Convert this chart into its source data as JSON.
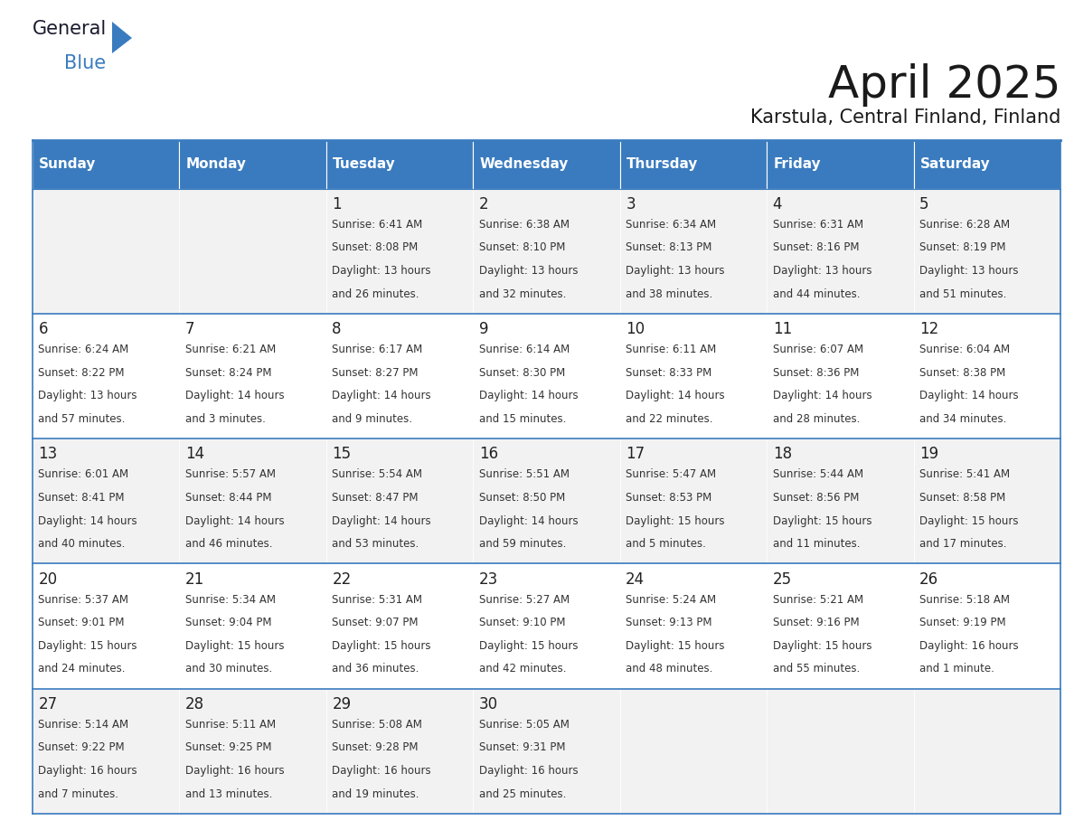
{
  "title": "April 2025",
  "subtitle": "Karstula, Central Finland, Finland",
  "header_bg": "#3a7bbf",
  "header_text_color": "#ffffff",
  "cell_bg_odd": "#f2f2f2",
  "cell_bg_even": "#ffffff",
  "text_color": "#333333",
  "day_num_color": "#222222",
  "border_color": "#3a7bbf",
  "days_of_week": [
    "Sunday",
    "Monday",
    "Tuesday",
    "Wednesday",
    "Thursday",
    "Friday",
    "Saturday"
  ],
  "weeks": [
    [
      {
        "day": "",
        "info": ""
      },
      {
        "day": "",
        "info": ""
      },
      {
        "day": "1",
        "info": "Sunrise: 6:41 AM\nSunset: 8:08 PM\nDaylight: 13 hours\nand 26 minutes."
      },
      {
        "day": "2",
        "info": "Sunrise: 6:38 AM\nSunset: 8:10 PM\nDaylight: 13 hours\nand 32 minutes."
      },
      {
        "day": "3",
        "info": "Sunrise: 6:34 AM\nSunset: 8:13 PM\nDaylight: 13 hours\nand 38 minutes."
      },
      {
        "day": "4",
        "info": "Sunrise: 6:31 AM\nSunset: 8:16 PM\nDaylight: 13 hours\nand 44 minutes."
      },
      {
        "day": "5",
        "info": "Sunrise: 6:28 AM\nSunset: 8:19 PM\nDaylight: 13 hours\nand 51 minutes."
      }
    ],
    [
      {
        "day": "6",
        "info": "Sunrise: 6:24 AM\nSunset: 8:22 PM\nDaylight: 13 hours\nand 57 minutes."
      },
      {
        "day": "7",
        "info": "Sunrise: 6:21 AM\nSunset: 8:24 PM\nDaylight: 14 hours\nand 3 minutes."
      },
      {
        "day": "8",
        "info": "Sunrise: 6:17 AM\nSunset: 8:27 PM\nDaylight: 14 hours\nand 9 minutes."
      },
      {
        "day": "9",
        "info": "Sunrise: 6:14 AM\nSunset: 8:30 PM\nDaylight: 14 hours\nand 15 minutes."
      },
      {
        "day": "10",
        "info": "Sunrise: 6:11 AM\nSunset: 8:33 PM\nDaylight: 14 hours\nand 22 minutes."
      },
      {
        "day": "11",
        "info": "Sunrise: 6:07 AM\nSunset: 8:36 PM\nDaylight: 14 hours\nand 28 minutes."
      },
      {
        "day": "12",
        "info": "Sunrise: 6:04 AM\nSunset: 8:38 PM\nDaylight: 14 hours\nand 34 minutes."
      }
    ],
    [
      {
        "day": "13",
        "info": "Sunrise: 6:01 AM\nSunset: 8:41 PM\nDaylight: 14 hours\nand 40 minutes."
      },
      {
        "day": "14",
        "info": "Sunrise: 5:57 AM\nSunset: 8:44 PM\nDaylight: 14 hours\nand 46 minutes."
      },
      {
        "day": "15",
        "info": "Sunrise: 5:54 AM\nSunset: 8:47 PM\nDaylight: 14 hours\nand 53 minutes."
      },
      {
        "day": "16",
        "info": "Sunrise: 5:51 AM\nSunset: 8:50 PM\nDaylight: 14 hours\nand 59 minutes."
      },
      {
        "day": "17",
        "info": "Sunrise: 5:47 AM\nSunset: 8:53 PM\nDaylight: 15 hours\nand 5 minutes."
      },
      {
        "day": "18",
        "info": "Sunrise: 5:44 AM\nSunset: 8:56 PM\nDaylight: 15 hours\nand 11 minutes."
      },
      {
        "day": "19",
        "info": "Sunrise: 5:41 AM\nSunset: 8:58 PM\nDaylight: 15 hours\nand 17 minutes."
      }
    ],
    [
      {
        "day": "20",
        "info": "Sunrise: 5:37 AM\nSunset: 9:01 PM\nDaylight: 15 hours\nand 24 minutes."
      },
      {
        "day": "21",
        "info": "Sunrise: 5:34 AM\nSunset: 9:04 PM\nDaylight: 15 hours\nand 30 minutes."
      },
      {
        "day": "22",
        "info": "Sunrise: 5:31 AM\nSunset: 9:07 PM\nDaylight: 15 hours\nand 36 minutes."
      },
      {
        "day": "23",
        "info": "Sunrise: 5:27 AM\nSunset: 9:10 PM\nDaylight: 15 hours\nand 42 minutes."
      },
      {
        "day": "24",
        "info": "Sunrise: 5:24 AM\nSunset: 9:13 PM\nDaylight: 15 hours\nand 48 minutes."
      },
      {
        "day": "25",
        "info": "Sunrise: 5:21 AM\nSunset: 9:16 PM\nDaylight: 15 hours\nand 55 minutes."
      },
      {
        "day": "26",
        "info": "Sunrise: 5:18 AM\nSunset: 9:19 PM\nDaylight: 16 hours\nand 1 minute."
      }
    ],
    [
      {
        "day": "27",
        "info": "Sunrise: 5:14 AM\nSunset: 9:22 PM\nDaylight: 16 hours\nand 7 minutes."
      },
      {
        "day": "28",
        "info": "Sunrise: 5:11 AM\nSunset: 9:25 PM\nDaylight: 16 hours\nand 13 minutes."
      },
      {
        "day": "29",
        "info": "Sunrise: 5:08 AM\nSunset: 9:28 PM\nDaylight: 16 hours\nand 19 minutes."
      },
      {
        "day": "30",
        "info": "Sunrise: 5:05 AM\nSunset: 9:31 PM\nDaylight: 16 hours\nand 25 minutes."
      },
      {
        "day": "",
        "info": ""
      },
      {
        "day": "",
        "info": ""
      },
      {
        "day": "",
        "info": ""
      }
    ]
  ],
  "logo_general_color": "#1a1a2e",
  "logo_blue_color": "#3a7bbf",
  "title_fontsize": 36,
  "subtitle_fontsize": 15,
  "header_day_fontsize": 11,
  "day_num_fontsize": 12,
  "info_fontsize": 8.5
}
